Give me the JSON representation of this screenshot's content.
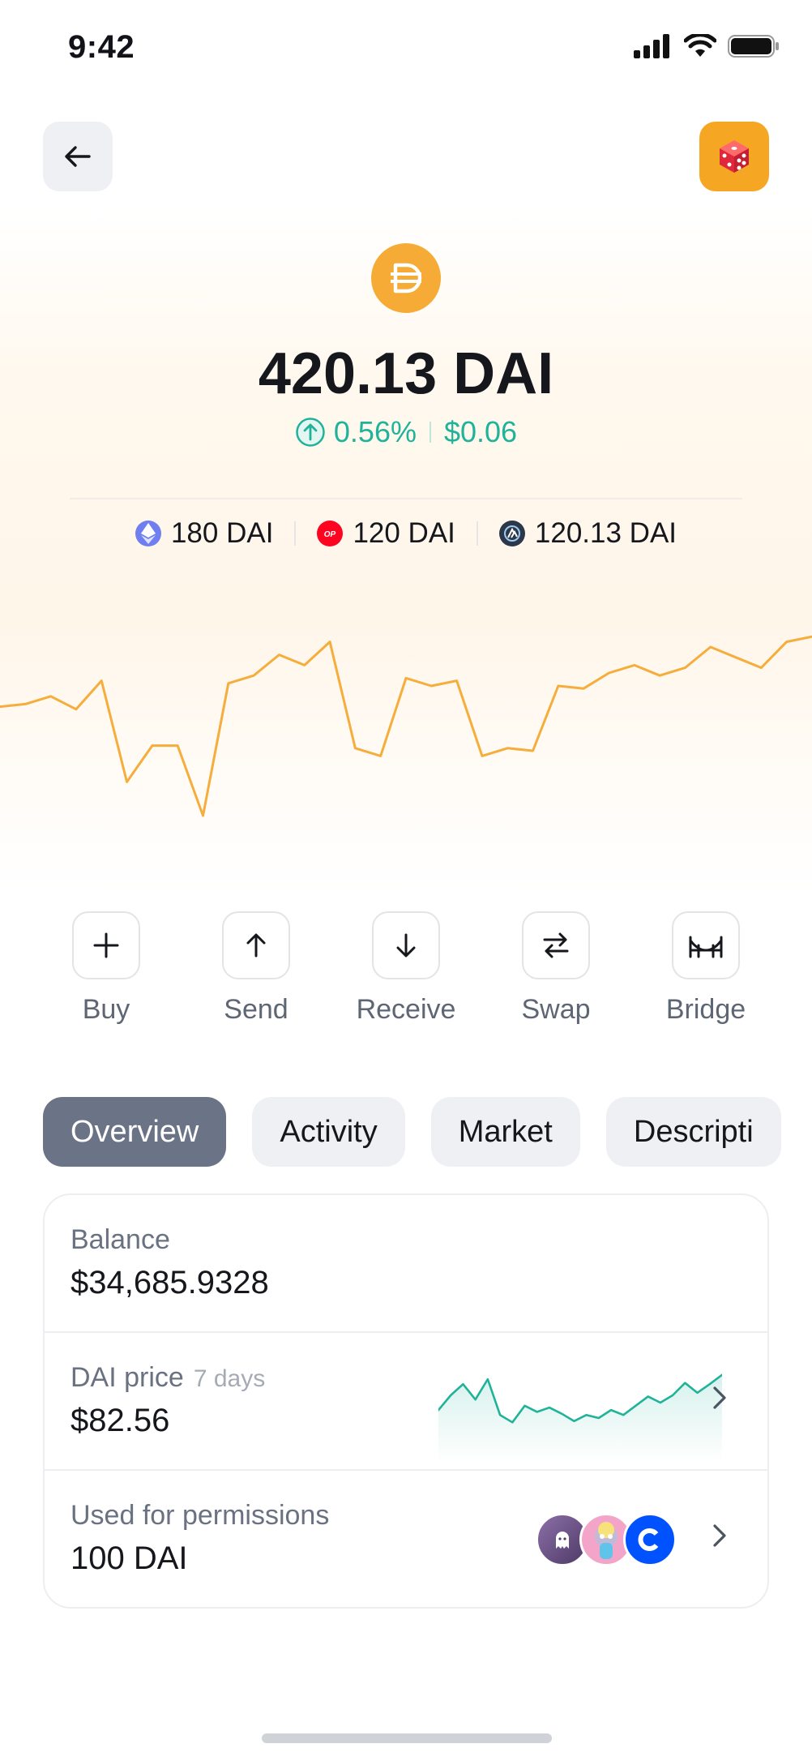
{
  "status_bar": {
    "time": "9:42"
  },
  "header": {
    "back_icon": "arrow-left-icon",
    "dice_icon": "dice-icon",
    "accent": "#f5a623"
  },
  "token": {
    "logo_icon": "dai-logo-icon",
    "amount": "420.13 DAI",
    "change_percent": "0.56%",
    "change_value": "$0.06",
    "change_color": "#20b39a"
  },
  "chains": [
    {
      "icon": "ethereum-icon",
      "amount": "180 DAI"
    },
    {
      "icon": "optimism-icon",
      "amount": "120 DAI"
    },
    {
      "icon": "arbitrum-icon",
      "amount": "120.13 DAI"
    }
  ],
  "price_chart": {
    "type": "line",
    "color": "#f5ad3c",
    "values": [
      0.62,
      0.63,
      0.66,
      0.61,
      0.72,
      0.33,
      0.47,
      0.47,
      0.2,
      0.71,
      0.74,
      0.82,
      0.78,
      0.87,
      0.46,
      0.43,
      0.73,
      0.7,
      0.72,
      0.43,
      0.46,
      0.45,
      0.7,
      0.69,
      0.75,
      0.78,
      0.74,
      0.77,
      0.85,
      0.81,
      0.77,
      0.87,
      0.89
    ]
  },
  "actions": [
    {
      "label": "Buy",
      "icon": "plus-icon"
    },
    {
      "label": "Send",
      "icon": "arrow-up-icon"
    },
    {
      "label": "Receive",
      "icon": "arrow-down-icon"
    },
    {
      "label": "Swap",
      "icon": "swap-icon"
    },
    {
      "label": "Bridge",
      "icon": "bridge-icon"
    }
  ],
  "tabs": [
    "Overview",
    "Activity",
    "Market",
    "Descripti"
  ],
  "balance": {
    "label": "Balance",
    "value": "$34,685.9328"
  },
  "price": {
    "label": "DAI price",
    "period": "7 days",
    "value": "$82.56",
    "sparkline_color": "#20b39a",
    "sparkline": [
      0.38,
      0.62,
      0.8,
      0.55,
      0.88,
      0.3,
      0.18,
      0.45,
      0.35,
      0.42,
      0.32,
      0.2,
      0.3,
      0.25,
      0.38,
      0.3,
      0.45,
      0.6,
      0.5,
      0.62,
      0.82,
      0.66,
      0.8,
      0.95
    ]
  },
  "permissions": {
    "label": "Used for permissions",
    "value": "100 DAI",
    "apps": [
      "ghost-app-icon",
      "ape-avatar-icon",
      "coinbase-icon"
    ]
  }
}
